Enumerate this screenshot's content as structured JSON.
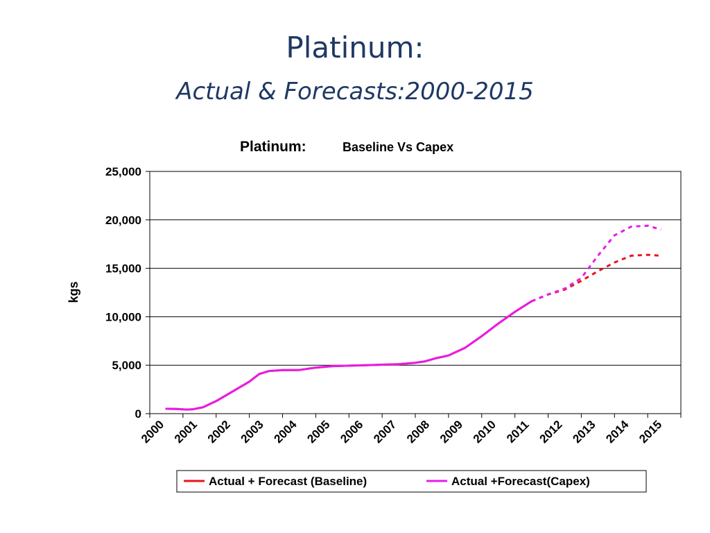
{
  "slide": {
    "title": "Platinum:",
    "subtitle": "Actual & Forecasts:2000-2015"
  },
  "chart_data": {
    "type": "line",
    "title": "Platinum:",
    "subtitle": "Baseline Vs Capex",
    "xlabel": "",
    "ylabel": "kgs",
    "ylim": [
      0,
      25000
    ],
    "yticks": [
      0,
      5000,
      10000,
      15000,
      20000,
      25000
    ],
    "ytick_labels": [
      "0",
      "5,000",
      "10,000",
      "15,000",
      "20,000",
      "25,000"
    ],
    "xlim": [
      2000,
      2016
    ],
    "categories": [
      "2000",
      "2001",
      "2002",
      "2003",
      "2004",
      "2005",
      "2006",
      "2007",
      "2008",
      "2009",
      "2010",
      "2011",
      "2012",
      "2013",
      "2014",
      "2015"
    ],
    "grid": "horizontal",
    "legend_position": "bottom",
    "forecast_start": 2011.5,
    "series": [
      {
        "name": "Actual + Forecast (Baseline)",
        "color": "#E8141B",
        "points": [
          [
            2000.5,
            500
          ],
          [
            2000.8,
            480
          ],
          [
            2001.1,
            420
          ],
          [
            2001.3,
            450
          ],
          [
            2001.6,
            650
          ],
          [
            2002.0,
            1300
          ],
          [
            2002.5,
            2300
          ],
          [
            2003.0,
            3300
          ],
          [
            2003.3,
            4100
          ],
          [
            2003.6,
            4400
          ],
          [
            2004.0,
            4500
          ],
          [
            2004.5,
            4500
          ],
          [
            2005.0,
            4750
          ],
          [
            2005.5,
            4900
          ],
          [
            2006.0,
            4950
          ],
          [
            2006.5,
            5000
          ],
          [
            2007.0,
            5050
          ],
          [
            2007.5,
            5100
          ],
          [
            2008.0,
            5250
          ],
          [
            2008.3,
            5400
          ],
          [
            2008.6,
            5700
          ],
          [
            2009.0,
            6000
          ],
          [
            2009.5,
            6800
          ],
          [
            2010.0,
            8000
          ],
          [
            2010.5,
            9300
          ],
          [
            2011.0,
            10500
          ],
          [
            2011.5,
            11600
          ],
          [
            2012.0,
            12300
          ],
          [
            2012.5,
            12800
          ],
          [
            2013.0,
            13700
          ],
          [
            2013.5,
            14700
          ],
          [
            2014.0,
            15600
          ],
          [
            2014.5,
            16300
          ],
          [
            2015.0,
            16400
          ],
          [
            2015.4,
            16300
          ]
        ]
      },
      {
        "name": "Actual +Forecast(Capex)",
        "color": "#E81BE8",
        "points": [
          [
            2000.5,
            500
          ],
          [
            2000.8,
            480
          ],
          [
            2001.1,
            420
          ],
          [
            2001.3,
            450
          ],
          [
            2001.6,
            650
          ],
          [
            2002.0,
            1300
          ],
          [
            2002.5,
            2300
          ],
          [
            2003.0,
            3300
          ],
          [
            2003.3,
            4100
          ],
          [
            2003.6,
            4400
          ],
          [
            2004.0,
            4500
          ],
          [
            2004.5,
            4500
          ],
          [
            2005.0,
            4750
          ],
          [
            2005.5,
            4900
          ],
          [
            2006.0,
            4950
          ],
          [
            2006.5,
            5000
          ],
          [
            2007.0,
            5050
          ],
          [
            2007.5,
            5100
          ],
          [
            2008.0,
            5250
          ],
          [
            2008.3,
            5400
          ],
          [
            2008.6,
            5700
          ],
          [
            2009.0,
            6000
          ],
          [
            2009.5,
            6800
          ],
          [
            2010.0,
            8000
          ],
          [
            2010.5,
            9300
          ],
          [
            2011.0,
            10500
          ],
          [
            2011.5,
            11600
          ],
          [
            2012.0,
            12300
          ],
          [
            2012.5,
            12900
          ],
          [
            2013.0,
            14000
          ],
          [
            2013.5,
            16300
          ],
          [
            2014.0,
            18400
          ],
          [
            2014.5,
            19300
          ],
          [
            2015.0,
            19400
          ],
          [
            2015.4,
            19000
          ]
        ]
      }
    ]
  }
}
